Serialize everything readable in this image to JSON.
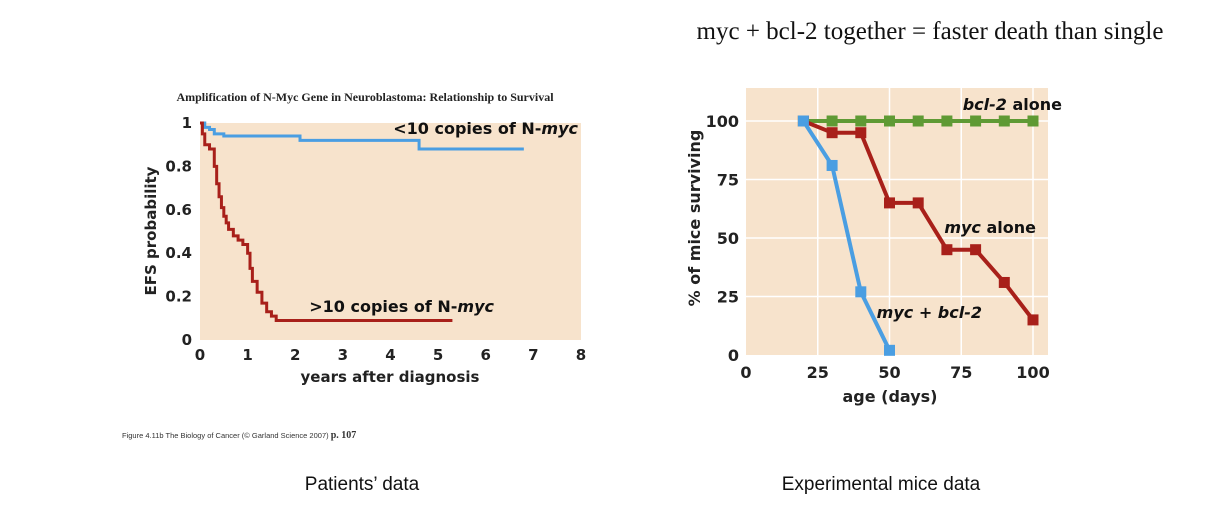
{
  "heading": "myc + bcl-2 together = faster death than single",
  "captions": {
    "left": "Patients’ data",
    "right": "Experimental mice data"
  },
  "citation": {
    "text": "Figure 4.11b The Biology of Cancer (© Garland Science 2007)",
    "page": "p. 107"
  },
  "colors": {
    "panel_bg": "#f7e3cc",
    "blue": "#4a9ee2",
    "red": "#a8201a",
    "green": "#5f9a34",
    "grid": "#ffffff"
  },
  "chart_data": [
    {
      "type": "line",
      "title": "Amplification of N-Myc Gene in Neuroblastoma: Relationship to Survival",
      "xlabel": "years after diagnosis",
      "ylabel": "EFS probability",
      "xlim": [
        0,
        8
      ],
      "ylim": [
        0,
        1
      ],
      "xticks": [
        "0",
        "1",
        "2",
        "3",
        "4",
        "5",
        "6",
        "7",
        "8"
      ],
      "yticks": [
        "0",
        "0.2",
        "0.4",
        "0.6",
        "0.8",
        "1"
      ],
      "step": true,
      "series": [
        {
          "name": "<10 copies of N-myc",
          "color": "blue",
          "x": [
            0,
            0.1,
            0.2,
            0.3,
            0.5,
            2.1,
            4.6,
            6.8
          ],
          "y": [
            1,
            0.98,
            0.97,
            0.95,
            0.94,
            0.92,
            0.88,
            0.88
          ]
        },
        {
          "name": ">10 copies of N-myc",
          "color": "red",
          "x": [
            0,
            0.05,
            0.1,
            0.2,
            0.3,
            0.35,
            0.4,
            0.45,
            0.5,
            0.55,
            0.6,
            0.7,
            0.8,
            0.9,
            1.0,
            1.05,
            1.1,
            1.2,
            1.3,
            1.4,
            1.5,
            1.6,
            5.3
          ],
          "y": [
            1,
            0.95,
            0.9,
            0.88,
            0.8,
            0.72,
            0.66,
            0.61,
            0.57,
            0.54,
            0.51,
            0.48,
            0.46,
            0.44,
            0.4,
            0.33,
            0.27,
            0.22,
            0.17,
            0.13,
            0.11,
            0.09,
            0.09
          ]
        }
      ]
    },
    {
      "type": "line",
      "xlabel": "age (days)",
      "ylabel": "% of mice surviving",
      "xlim": [
        0,
        100
      ],
      "ylim": [
        0,
        100
      ],
      "xticks": [
        0,
        25,
        50,
        75,
        100
      ],
      "yticks": [
        0,
        25,
        50,
        75,
        100
      ],
      "series": [
        {
          "name": "bcl-2 alone",
          "color": "green",
          "x": [
            20,
            30,
            40,
            50,
            60,
            70,
            80,
            90,
            100
          ],
          "y": [
            100,
            100,
            100,
            100,
            100,
            100,
            100,
            100,
            100
          ]
        },
        {
          "name": "myc alone",
          "color": "red",
          "x": [
            20,
            30,
            40,
            50,
            60,
            70,
            80,
            90,
            100
          ],
          "y": [
            100,
            95,
            95,
            65,
            65,
            45,
            45,
            31,
            15
          ]
        },
        {
          "name": "myc + bcl-2",
          "color": "blue",
          "x": [
            20,
            30,
            40,
            50
          ],
          "y": [
            100,
            81,
            27,
            2
          ]
        }
      ]
    }
  ]
}
